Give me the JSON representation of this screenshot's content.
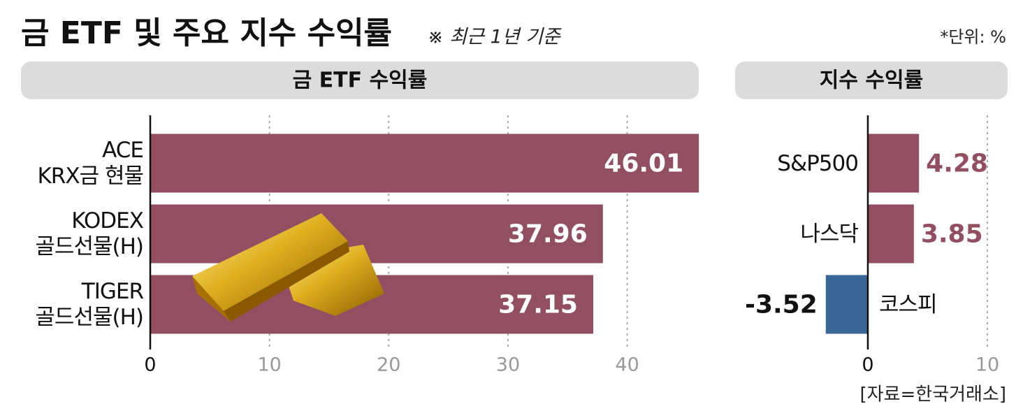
{
  "header": {
    "title": "금 ETF 및 주요 지수 수익률",
    "subtitle": "※ 최근 1년 기준",
    "unit": "*단위: %"
  },
  "source": "[자료=한국거래소]",
  "chart_data": [
    {
      "type": "bar",
      "orientation": "horizontal",
      "title": "금 ETF 수익률",
      "categories": [
        "ACE\nKRX금 현물",
        "KODEX\n골드선물(H)",
        "TIGER\n골드선물(H)"
      ],
      "values": [
        46.01,
        37.96,
        37.15
      ],
      "color": "#934f62",
      "negative_color": "#3b6796",
      "xlim": [
        0,
        46
      ],
      "xticks": [
        0,
        10,
        20,
        30,
        40
      ],
      "grid": true
    },
    {
      "type": "bar",
      "orientation": "horizontal",
      "title": "지수 수익률",
      "categories": [
        "S&P500",
        "나스닥",
        "코스피"
      ],
      "values": [
        4.28,
        3.85,
        -3.52
      ],
      "color": "#934f62",
      "negative_color": "#3b6796",
      "xlim": [
        -3.6,
        10
      ],
      "xticks": [
        0,
        10
      ],
      "grid": true
    }
  ]
}
